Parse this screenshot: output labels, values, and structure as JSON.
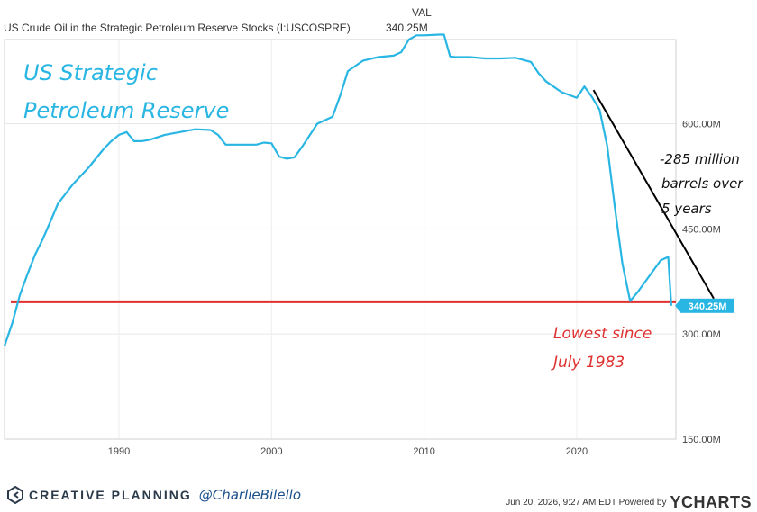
{
  "header": {
    "title": "US Crude Oil in the Strategic Petroleum Reserve Stocks (I:USCOSPRE)",
    "val_label": "VAL",
    "val": "340.25M"
  },
  "chart_data": {
    "type": "line",
    "title": "US Strategic Petroleum Reserve",
    "xlim": [
      1982.5,
      2026.5
    ],
    "ylim": [
      150,
      720
    ],
    "y_ticks": [
      {
        "value": 600,
        "label": "600.00M"
      },
      {
        "value": 450,
        "label": "450.00M"
      },
      {
        "value": 300,
        "label": "300.00M"
      },
      {
        "value": 150,
        "label": "150.00M"
      }
    ],
    "x_ticks": [
      {
        "value": 1990,
        "label": "1990"
      },
      {
        "value": 2000,
        "label": "2000"
      },
      {
        "value": 2010,
        "label": "2010"
      },
      {
        "value": 2020,
        "label": "2020"
      }
    ],
    "grid": true,
    "series": [
      {
        "color": "#29b6e3",
        "x": [
          1982.5,
          1983.0,
          1983.5,
          1984.0,
          1984.5,
          1985.0,
          1985.5,
          1986.0,
          1987.0,
          1988.0,
          1989.0,
          1989.5,
          1990.0,
          1990.5,
          1991.0,
          1991.5,
          1992.0,
          1993.0,
          1994.0,
          1995.0,
          1996.0,
          1996.5,
          1997.0,
          1998.0,
          1999.0,
          1999.5,
          2000.0,
          2000.5,
          2001.0,
          2001.5,
          2002.0,
          2003.0,
          2004.0,
          2004.5,
          2005.0,
          2006.0,
          2007.0,
          2008.0,
          2008.5,
          2009.0,
          2009.5,
          2010.0,
          2011.0,
          2011.3,
          2011.7,
          2012.0,
          2013.0,
          2014.0,
          2015.0,
          2016.0,
          2017.0,
          2017.5,
          2018.0,
          2019.0,
          2020.0,
          2020.5,
          2021.0,
          2021.5,
          2022.0,
          2022.5,
          2023.0,
          2023.5,
          2024.0,
          2025.0,
          2025.5,
          2026.0,
          2026.2
        ],
        "values": [
          283,
          315,
          355,
          385,
          413,
          435,
          460,
          486,
          514,
          537,
          564,
          575,
          584,
          588,
          575,
          575,
          577,
          584,
          588,
          592,
          591,
          584,
          570,
          570,
          570,
          573,
          572,
          553,
          550,
          552,
          567,
          600,
          610,
          640,
          675,
          690,
          695,
          697,
          702,
          720,
          726,
          726,
          727,
          727,
          696,
          695,
          695,
          693,
          693,
          694,
          688,
          672,
          660,
          645,
          637,
          653,
          638,
          620,
          568,
          480,
          400,
          347,
          360,
          390,
          405,
          410,
          340.25
        ]
      }
    ],
    "current_value": 340.25,
    "current_label": "340.25M",
    "reference_line": {
      "value": 346
    },
    "annotations": {
      "brand_title_line1": "US Strategic",
      "brand_title_line2": "Petroleum Reserve",
      "drop_line1": "-285 million",
      "drop_line2": "barrels over",
      "drop_line3": "5 years",
      "low_line1": "Lowest since",
      "low_line2": "July 1983"
    },
    "colors": {
      "series": "#29b6e3",
      "reference": "#e03131",
      "annotation_low": "#e03131",
      "annotation_title": "#29b6e3",
      "badge": "#29b6e3",
      "trend": "#000000"
    }
  },
  "footer": {
    "brand": "CREATIVE PLANNING",
    "handle": "@CharlieBilello",
    "timestamp": "Jun 20, 2026, 9:27 AM EDT Powered by",
    "ycharts": "YCHARTS"
  }
}
